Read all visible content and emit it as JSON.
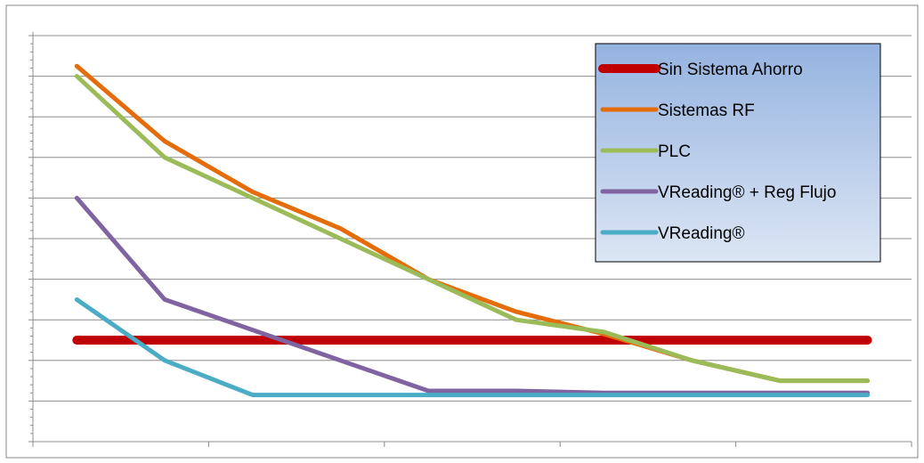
{
  "chart_data": {
    "type": "line",
    "title": "",
    "xlabel": "",
    "ylabel": "",
    "x": [
      1,
      2,
      3,
      4,
      5,
      6,
      7,
      8,
      9,
      10
    ],
    "xlim": [
      0.5,
      10.5
    ],
    "ylim": [
      0,
      10
    ],
    "grid": true,
    "legend_position": "top-right",
    "series": [
      {
        "name": "Sin Sistema Ahorro",
        "color": "#c00000",
        "values": [
          2.5,
          2.5,
          2.5,
          2.5,
          2.5,
          2.5,
          2.5,
          2.5,
          2.5,
          2.5
        ]
      },
      {
        "name": "Sistemas RF",
        "color": "#e46c0a",
        "values": [
          9.25,
          7.4,
          6.15,
          5.25,
          4.0,
          3.2,
          2.65,
          2.0,
          1.5,
          1.5
        ]
      },
      {
        "name": "PLC",
        "color": "#9bbb59",
        "values": [
          9.0,
          7.0,
          6.0,
          5.0,
          4.0,
          3.0,
          2.7,
          2.0,
          1.5,
          1.5
        ]
      },
      {
        "name": "VReading® + Reg Flujo",
        "color": "#8064a2",
        "values": [
          6.0,
          3.5,
          2.75,
          2.0,
          1.25,
          1.25,
          1.2,
          1.2,
          1.2,
          1.2
        ]
      },
      {
        "name": "VReading®",
        "color": "#4bacc6",
        "values": [
          3.5,
          2.0,
          1.15,
          1.15,
          1.15,
          1.15,
          1.15,
          1.15,
          1.15,
          1.15
        ]
      }
    ]
  }
}
